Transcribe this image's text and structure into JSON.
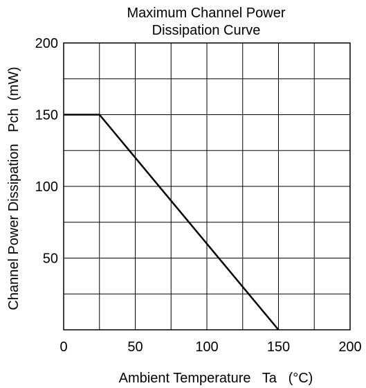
{
  "chart_data": {
    "type": "line",
    "title": [
      "Maximum Channel Power",
      "Dissipation Curve"
    ],
    "xlabel": "Ambient Temperature   Ta   (°C)",
    "ylabel": "Channel Power Dissipation   Pch  (mW)",
    "xlim": [
      0,
      200
    ],
    "ylim": [
      0,
      200
    ],
    "x_ticks": [
      0,
      50,
      100,
      150,
      200
    ],
    "x_tick_labels": [
      "0",
      "50",
      "100",
      "150",
      "200"
    ],
    "y_ticks": [
      50,
      100,
      150,
      200
    ],
    "y_tick_labels": [
      "50",
      "100",
      "150",
      "200"
    ],
    "x_grid_step": 25,
    "y_grid_step": 25,
    "grid": true,
    "series": [
      {
        "x": [
          0,
          25,
          150
        ],
        "y": [
          150,
          150,
          0
        ]
      }
    ],
    "colors": {
      "grid": "#000000",
      "line": "#000000",
      "text": "#000000"
    }
  }
}
